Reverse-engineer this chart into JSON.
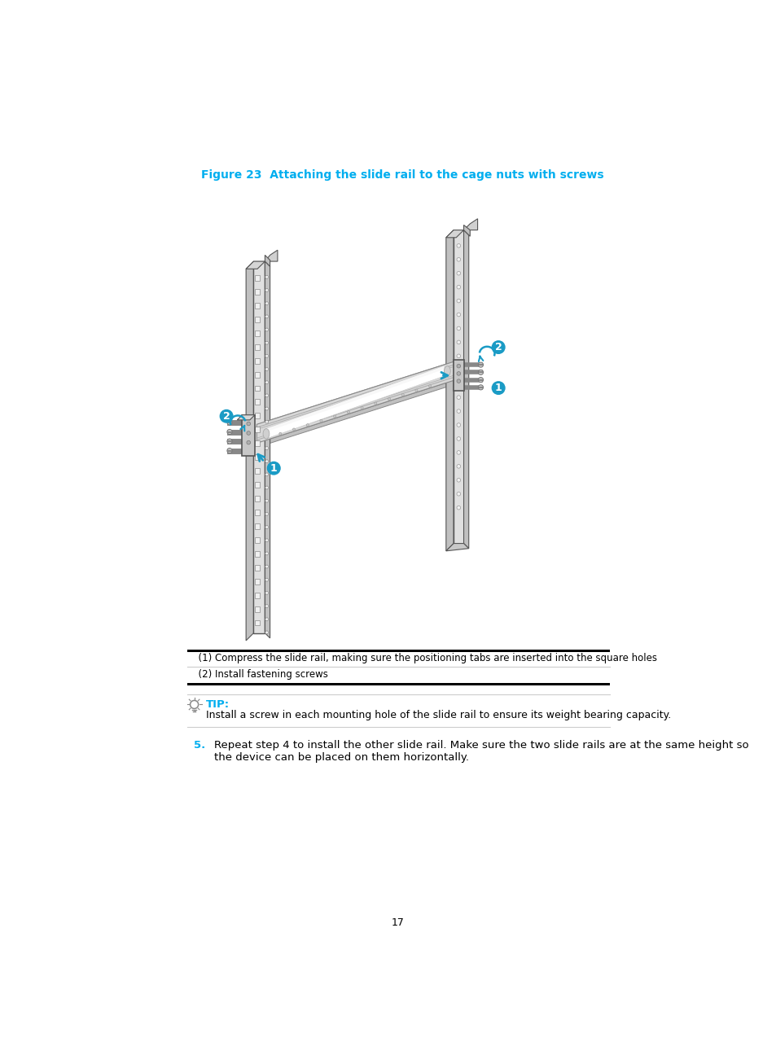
{
  "title": "Figure 23  Attaching the slide rail to the cage nuts with screws",
  "title_color": "#00AEEF",
  "title_fontsize": 10.0,
  "bg_color": "#ffffff",
  "table_row1": "  (1) Compress the slide rail, making sure the positioning tabs are inserted into the square holes",
  "table_row2": "  (2) Install fastening screws",
  "tip_label": "TIP:",
  "tip_label_color": "#00AEEF",
  "tip_text": "Install a screw in each mounting hole of the slide rail to ensure its weight bearing capacity.",
  "step5_num": "5.",
  "step5_num_color": "#00AEEF",
  "step5_text": "Repeat step 4 to install the other slide rail. Make sure the two slide rails are at the same height so\nthe device can be placed on them horizontally.",
  "page_num": "17",
  "blue": "#1A9BC5",
  "post_face": "#e0e0e0",
  "post_side": "#c0c0c0",
  "post_dark": "#a8a8a8",
  "post_edge": "#555555",
  "rail_top": "#e8e8e8",
  "rail_face": "#d8d8d8",
  "rail_side": "#b8b8b8",
  "rail_edge": "#888888",
  "hole_color": "#f0f0f0",
  "screw_color": "#c8c8c8"
}
